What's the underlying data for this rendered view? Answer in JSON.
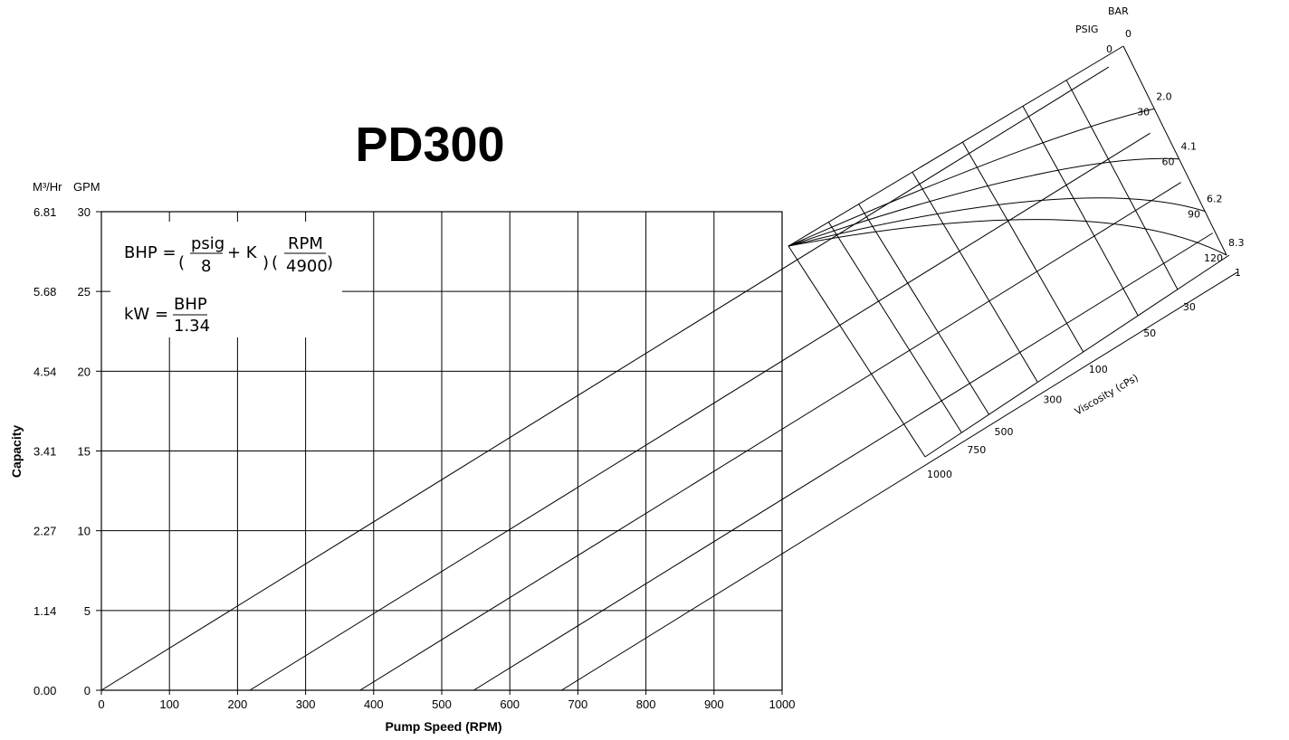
{
  "title": "PD300",
  "chart_data": {
    "type": "line",
    "title": "PD300",
    "xlabel": "Pump Speed (RPM)",
    "ylabel": "Capacity",
    "y_unit_left": "M³/Hr",
    "y_unit_right": "GPM",
    "xlim": [
      0,
      1000
    ],
    "ylim": [
      0,
      30
    ],
    "x_ticks": [
      "0",
      "100",
      "200",
      "300",
      "400",
      "500",
      "600",
      "700",
      "800",
      "900",
      "1000"
    ],
    "y_ticks_gpm": [
      "0",
      "5",
      "10",
      "15",
      "20",
      "25",
      "30"
    ],
    "y_ticks_m3hr": [
      "0.00",
      "1.14",
      "2.27",
      "3.41",
      "4.54",
      "5.68",
      "6.81"
    ],
    "grid": true,
    "series": [
      {
        "x": [
          0,
          1000
        ],
        "y": [
          0,
          26.4
        ]
      },
      {
        "x": [
          218,
          1000
        ],
        "y": [
          0,
          20.6
        ]
      },
      {
        "x": [
          380,
          1000
        ],
        "y": [
          0,
          16.4
        ]
      },
      {
        "x": [
          547,
          1000
        ],
        "y": [
          0,
          12.0
        ]
      },
      {
        "x": [
          676,
          1000
        ],
        "y": [
          0,
          8.6
        ]
      }
    ],
    "formula": {
      "bhp_lhs": "BHP =",
      "bhp_num1": "psig",
      "bhp_den1": "8",
      "bhp_plus": "+ K",
      "bhp_num2": "RPM",
      "bhp_den2": "4900",
      "kw_lhs": "kW =",
      "kw_num": "BHP",
      "kw_den": "1.34"
    },
    "nomograph": {
      "pressure_title_psig": "PSIG",
      "pressure_title_bar": "BAR",
      "pressure_psig": [
        "0",
        "30",
        "60",
        "90",
        "120"
      ],
      "pressure_bar": [
        "0",
        "2.0",
        "4.1",
        "6.2",
        "8.3"
      ],
      "viscosity_label": "Viscosity (cPs)",
      "viscosity_cps": [
        "1",
        "30",
        "50",
        "100",
        "300",
        "500",
        "750",
        "1000"
      ]
    }
  }
}
